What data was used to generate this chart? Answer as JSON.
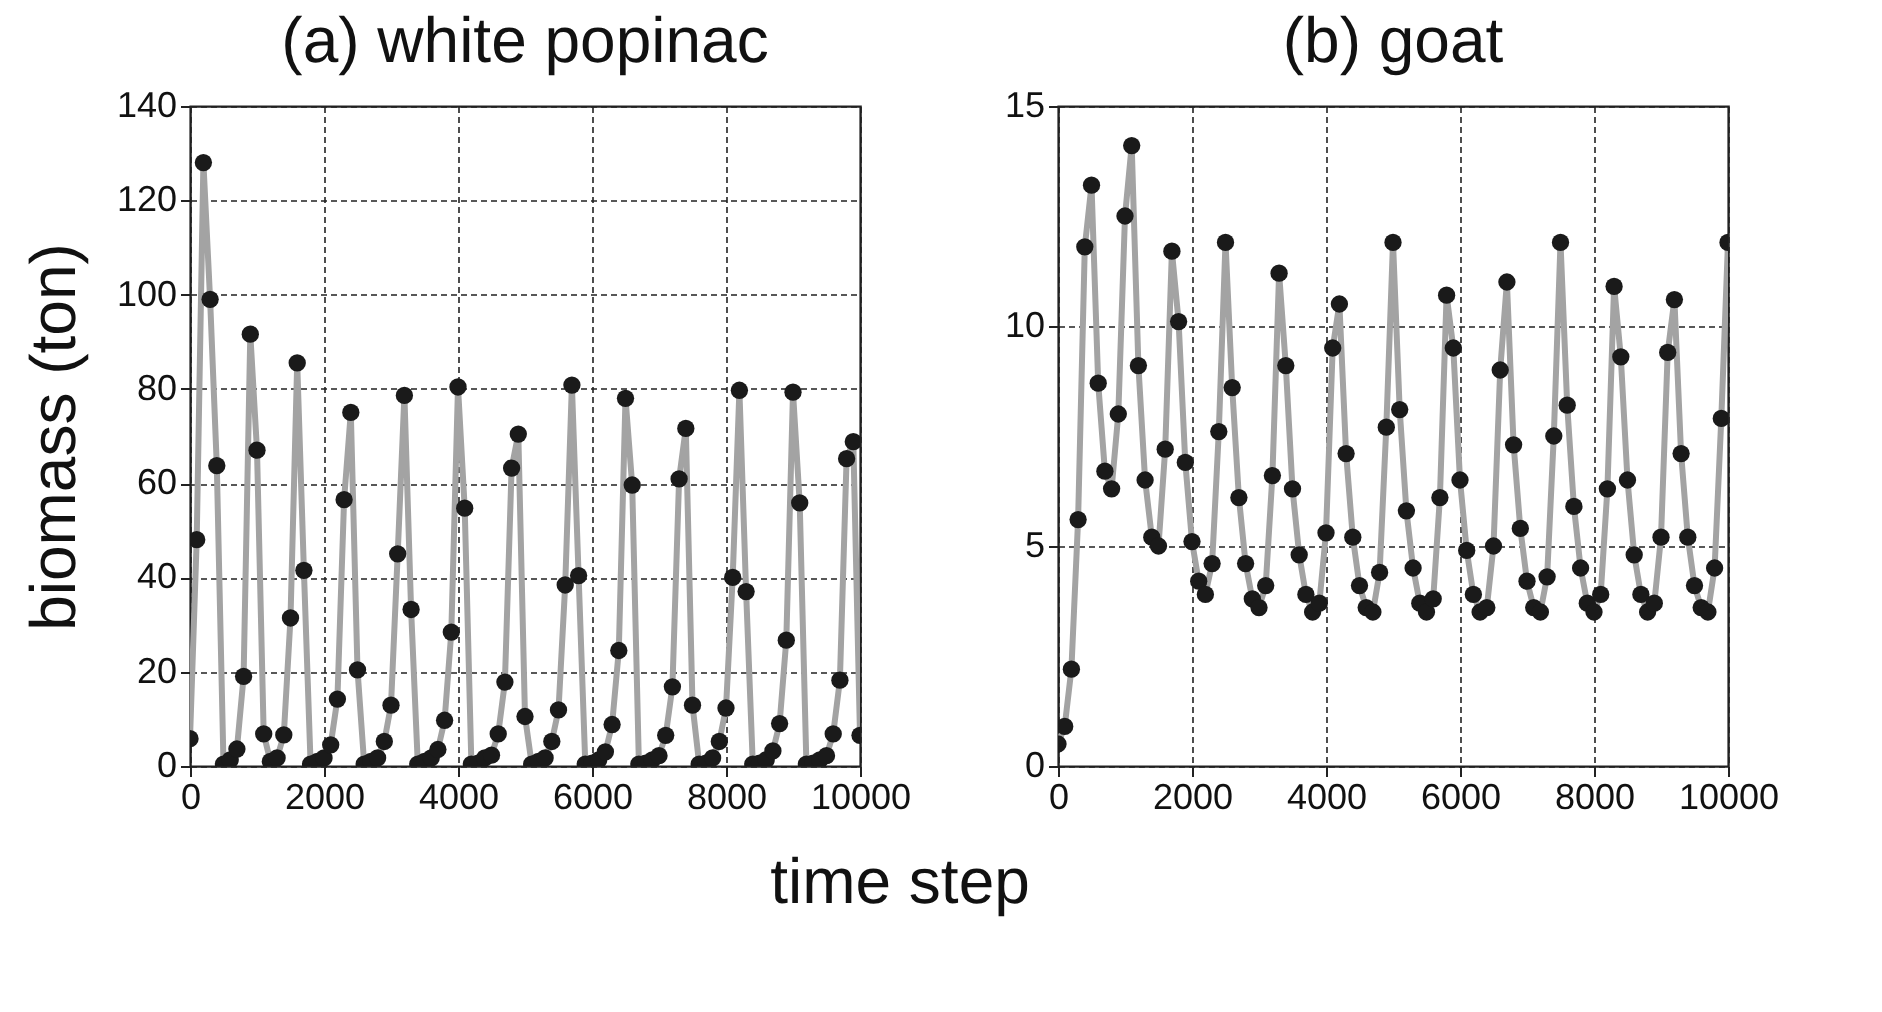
{
  "chart_data": [
    {
      "type": "line",
      "title": "(a) white popinac",
      "xlabel": "time step",
      "ylabel": "biomass (ton)",
      "xlim": [
        0,
        10000
      ],
      "xticks": [
        0,
        2000,
        4000,
        6000,
        8000,
        10000
      ],
      "ylim": [
        0,
        140
      ],
      "yticks": [
        0,
        20,
        40,
        60,
        80,
        100,
        120,
        140
      ],
      "grid": true,
      "marker": "circle",
      "line_style": "solid",
      "x": [
        0,
        100,
        200,
        300,
        400,
        500,
        600,
        700,
        800,
        900,
        1000,
        1100,
        1200,
        1300,
        1400,
        1500,
        1600,
        1700,
        1800,
        1900,
        2000,
        2100,
        2200,
        2300,
        2400,
        2500,
        2600,
        2700,
        2800,
        2900,
        3000,
        3100,
        3200,
        3300,
        3400,
        3500,
        3600,
        3700,
        3800,
        3900,
        4000,
        4100,
        4200,
        4300,
        4400,
        4500,
        4600,
        4700,
        4800,
        4900,
        5000,
        5100,
        5200,
        5300,
        5400,
        5500,
        5600,
        5700,
        5800,
        5900,
        6000,
        6100,
        6200,
        6300,
        6400,
        6500,
        6600,
        6700,
        6800,
        6900,
        7000,
        7100,
        7200,
        7300,
        7400,
        7500,
        7600,
        7700,
        7800,
        7900,
        8000,
        8100,
        8200,
        8300,
        8400,
        8500,
        8600,
        8700,
        8800,
        8900,
        9000,
        9100,
        9200,
        9300,
        9400,
        9500,
        9600,
        9700,
        9800,
        9900,
        10000
      ],
      "series": [
        {
          "color": "#1a1a1a",
          "values": [
            5.8,
            48,
            128,
            99,
            63.7,
            0.4,
            1.3,
            3.6,
            19,
            91.6,
            67,
            6.8,
            1,
            1.7,
            6.6,
            31.4,
            85.5,
            41.5,
            0.4,
            1,
            1.7,
            4.5,
            14.2,
            56.5,
            75,
            20.4,
            0.4,
            1,
            1.7,
            5.2,
            12.9,
            45,
            78.6,
            33.2,
            0.4,
            1,
            1.7,
            3.5,
            9.7,
            28.4,
            80.4,
            54.7,
            0.4,
            0.6,
            1.7,
            2.3,
            6.8,
            17.8,
            63.2,
            70.4,
            10.5,
            0.4,
            1,
            1.7,
            5.2,
            11.9,
            38.4,
            80.8,
            40.4,
            0.4,
            0.6,
            1.3,
            3,
            8.8,
            24.5,
            78,
            59.6,
            0.4,
            0.6,
            1.3,
            2.2,
            6.5,
            16.8,
            60.9,
            71.6,
            12.9,
            0.4,
            0.6,
            1.7,
            5.2,
            12.3,
            40,
            79.7,
            37,
            0.4,
            0.6,
            1.3,
            3.2,
            9,
            26.7,
            79.3,
            55.8,
            0.4,
            0.6,
            1.3,
            2.2,
            6.8,
            18.2,
            65.2,
            68.8,
            6.5
          ]
        }
      ]
    },
    {
      "type": "line",
      "title": "(b) goat",
      "xlim": [
        0,
        10000
      ],
      "xticks": [
        0,
        2000,
        4000,
        6000,
        8000,
        10000
      ],
      "ylim": [
        0,
        15
      ],
      "yticks": [
        0,
        5,
        10,
        15
      ],
      "grid": true,
      "marker": "circle",
      "line_style": "solid",
      "x": [
        0,
        100,
        200,
        300,
        400,
        500,
        600,
        700,
        800,
        900,
        1000,
        1100,
        1200,
        1300,
        1400,
        1500,
        1600,
        1700,
        1800,
        1900,
        2000,
        2100,
        2200,
        2300,
        2400,
        2500,
        2600,
        2700,
        2800,
        2900,
        3000,
        3100,
        3200,
        3300,
        3400,
        3500,
        3600,
        3700,
        3800,
        3900,
        4000,
        4100,
        4200,
        4300,
        4400,
        4500,
        4600,
        4700,
        4800,
        4900,
        5000,
        5100,
        5200,
        5300,
        5400,
        5500,
        5600,
        5700,
        5800,
        5900,
        6000,
        6100,
        6200,
        6300,
        6400,
        6500,
        6600,
        6700,
        6800,
        6900,
        7000,
        7100,
        7200,
        7300,
        7400,
        7500,
        7600,
        7700,
        7800,
        7900,
        8000,
        8100,
        8200,
        8300,
        8400,
        8500,
        8600,
        8700,
        8800,
        8900,
        9000,
        9100,
        9200,
        9300,
        9400,
        9500,
        9600,
        9700,
        9800,
        9900,
        10000
      ],
      "series": [
        {
          "color": "#1a1a1a",
          "values": [
            0.5,
            0.9,
            2.2,
            5.6,
            11.8,
            13.2,
            8.7,
            6.7,
            6.3,
            8.0,
            12.5,
            14.1,
            9.1,
            6.5,
            5.2,
            5.0,
            7.2,
            11.7,
            10.1,
            6.9,
            5.1,
            4.2,
            3.9,
            4.6,
            7.6,
            11.9,
            8.6,
            6.1,
            4.6,
            3.8,
            3.6,
            4.1,
            6.6,
            11.2,
            9.1,
            6.3,
            4.8,
            3.9,
            3.5,
            3.7,
            5.3,
            9.5,
            10.5,
            7.1,
            5.2,
            4.1,
            3.6,
            3.5,
            4.4,
            7.7,
            11.9,
            8.1,
            5.8,
            4.5,
            3.7,
            3.5,
            3.8,
            6.1,
            10.7,
            9.5,
            6.5,
            4.9,
            3.9,
            3.5,
            3.6,
            5.0,
            9.0,
            11.0,
            7.3,
            5.4,
            4.2,
            3.6,
            3.5,
            4.3,
            7.5,
            11.9,
            8.2,
            5.9,
            4.5,
            3.7,
            3.5,
            3.9,
            6.3,
            10.9,
            9.3,
            6.5,
            4.8,
            3.9,
            3.5,
            3.7,
            5.2,
            9.4,
            10.6,
            7.1,
            5.2,
            4.1,
            3.6,
            3.5,
            4.5,
            7.9,
            11.9
          ]
        }
      ]
    }
  ]
}
